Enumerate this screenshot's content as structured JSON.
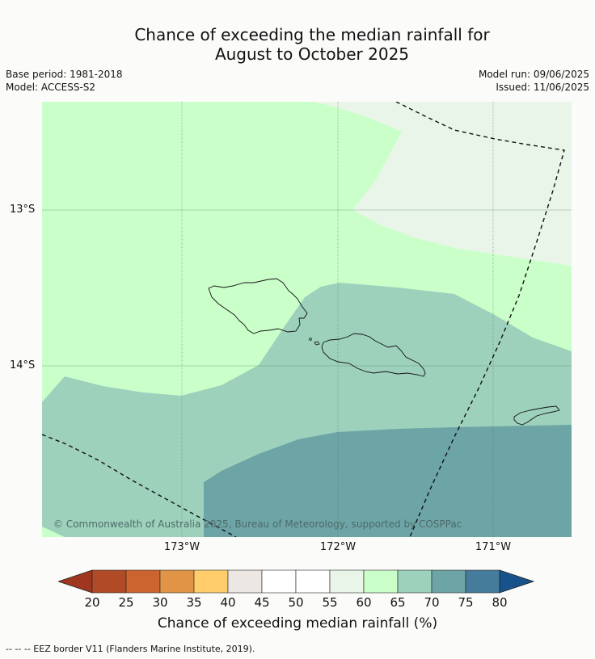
{
  "title_line1": "Chance of exceeding the median rainfall for",
  "title_line2": "August to October 2025",
  "meta": {
    "base_period": "Base period: 1981-2018",
    "model": "Model: ACCESS-S2",
    "model_run": "Model run: 09/06/2025",
    "issued": "Issued: 11/06/2025"
  },
  "axes": {
    "lat_labels": [
      "13°S",
      "14°S"
    ],
    "lon_labels": [
      "173°W",
      "172°W",
      "171°W"
    ]
  },
  "copyright": "© Commonwealth of Australia 2025, Bureau of Meteorology, supported by COSPPac",
  "colorbar": {
    "ticks": [
      "20",
      "25",
      "30",
      "35",
      "40",
      "45",
      "50",
      "55",
      "60",
      "65",
      "70",
      "75",
      "80"
    ],
    "colors": [
      "#9e3620",
      "#b14a26",
      "#cc6430",
      "#e29446",
      "#ffce6a",
      "#ede7e4",
      "#ffffff",
      "#ffffff",
      "#e9f5e9",
      "#caffc9",
      "#9dd1bb",
      "#6da4a6",
      "#457b9b",
      "#18528a"
    ],
    "label": "Chance of exceeding median rainfall (%)"
  },
  "footnote": "--  --  -- EEZ border V11 (Flanders Marine Institute, 2019)."
}
